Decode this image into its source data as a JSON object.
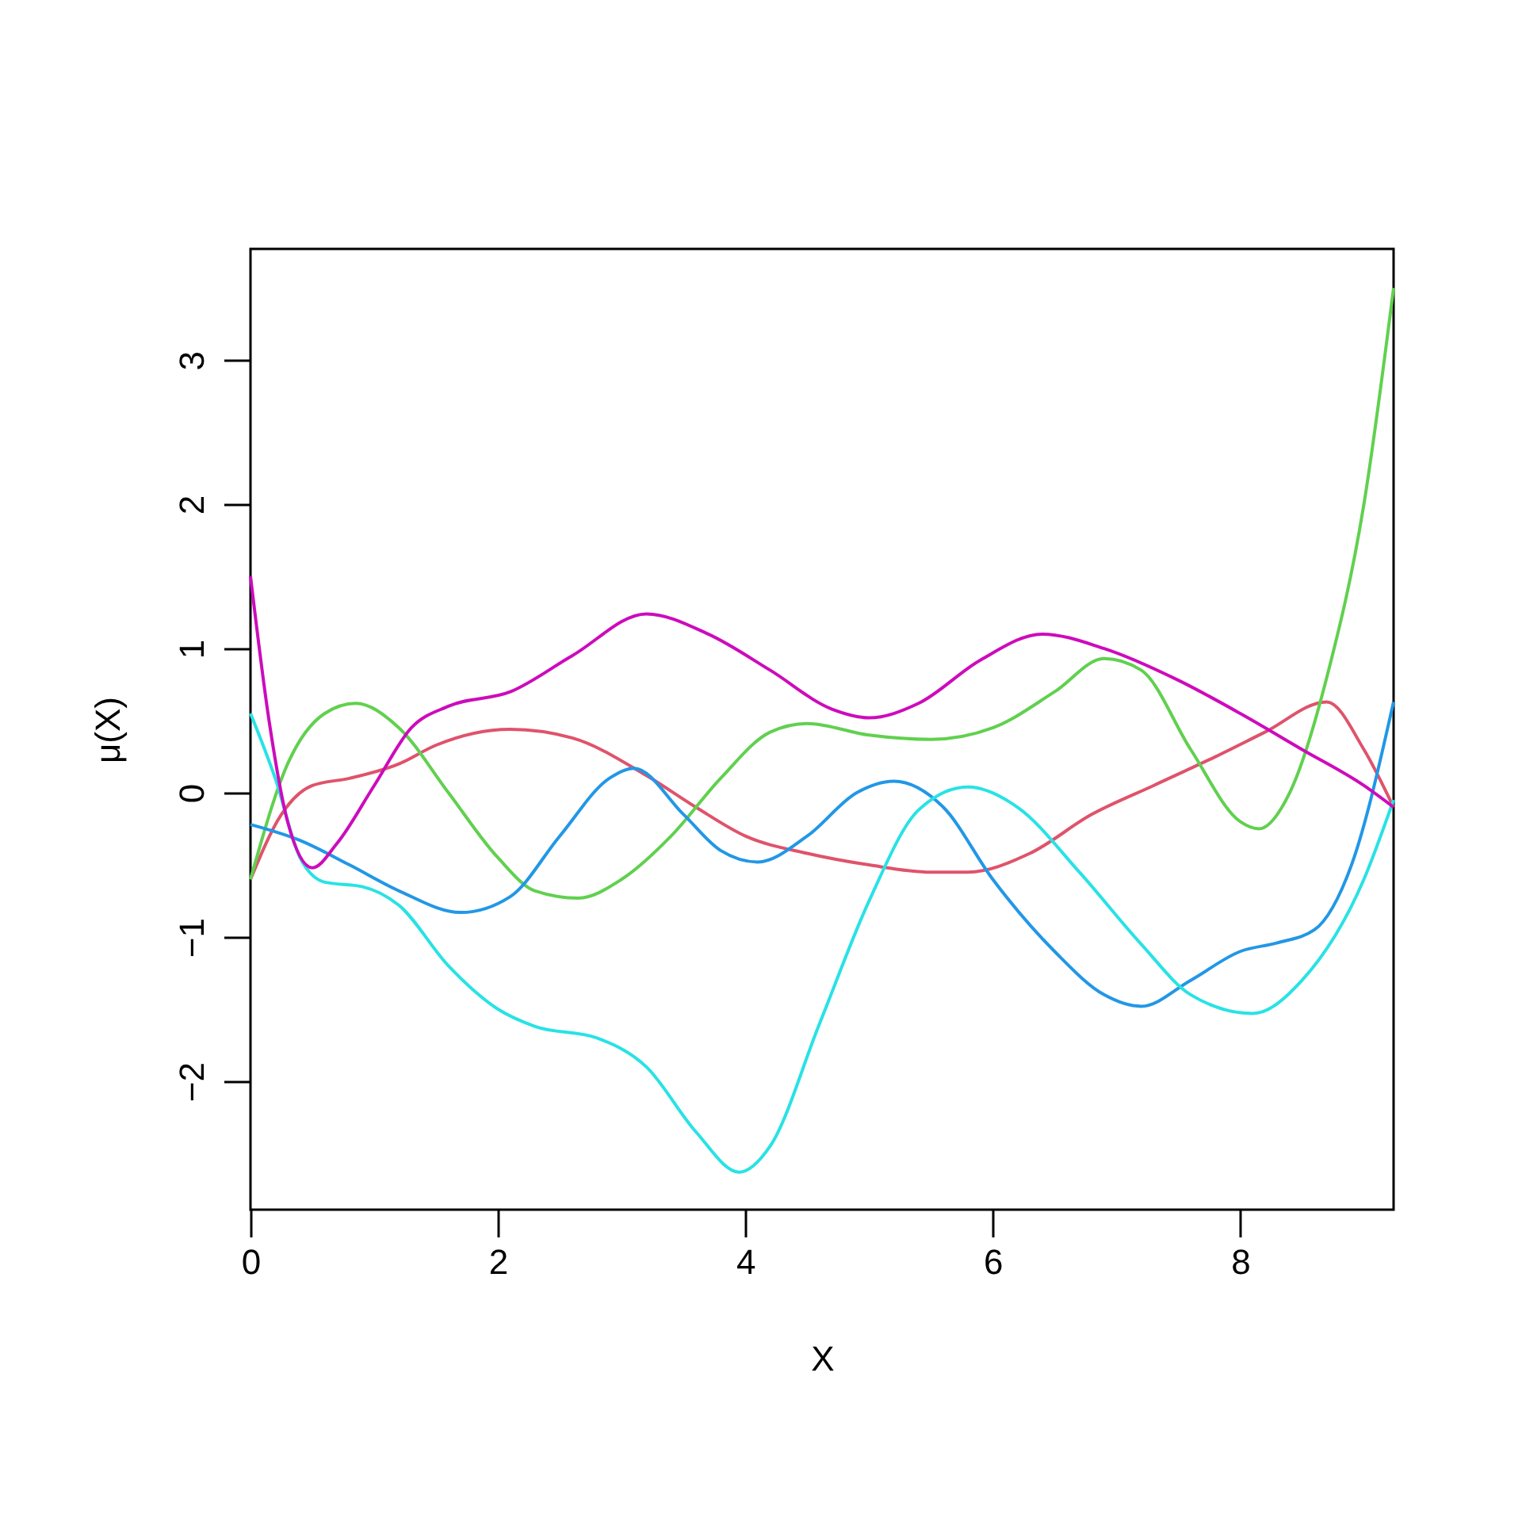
{
  "chart_data": {
    "type": "line",
    "xlabel": "X",
    "ylabel": "μ(X)",
    "xlim": [
      0,
      9.24
    ],
    "ylim": [
      -2.89,
      3.77
    ],
    "xticks": [
      0,
      2,
      4,
      6,
      8
    ],
    "yticks": [
      -2,
      -1,
      0,
      1,
      2,
      3
    ],
    "grid": false,
    "legend": false,
    "marker": "none",
    "line_style": "solid",
    "series": [
      {
        "color": "#df536b",
        "x": [
          0,
          0.25,
          0.5,
          0.8,
          1.2,
          1.5,
          2.1,
          2.6,
          3.2,
          3.6,
          4,
          4.5,
          5,
          5.5,
          5.8,
          6.3,
          6.8,
          7.3,
          7.8,
          8.2,
          8.7,
          9,
          9.24
        ],
        "values": [
          -0.6,
          -0.15,
          0.05,
          0.1,
          0.2,
          0.33,
          0.44,
          0.38,
          0.12,
          -0.1,
          -0.3,
          -0.42,
          -0.5,
          -0.55,
          -0.55,
          -0.42,
          -0.15,
          0.05,
          0.25,
          0.42,
          0.63,
          0.3,
          -0.1
        ]
      },
      {
        "color": "#61d04f",
        "x": [
          0,
          0.3,
          0.6,
          0.85,
          1.2,
          1.6,
          2,
          2.3,
          2.65,
          3,
          3.4,
          3.8,
          4.2,
          4.5,
          5,
          5.5,
          6,
          6.5,
          6.9,
          7.2,
          7.6,
          8,
          8.15,
          8.4,
          8.7,
          9,
          9.24
        ],
        "values": [
          -0.6,
          0.2,
          0.55,
          0.62,
          0.45,
          0,
          -0.45,
          -0.68,
          -0.73,
          -0.6,
          -0.3,
          0.1,
          0.42,
          0.48,
          0.4,
          0.37,
          0.45,
          0.7,
          0.93,
          0.85,
          0.3,
          -0.2,
          -0.25,
          0,
          0.8,
          2,
          3.5
        ]
      },
      {
        "color": "#2297e6",
        "x": [
          0,
          0.4,
          0.8,
          1.2,
          1.7,
          2.1,
          2.5,
          2.9,
          3.1,
          3.5,
          3.8,
          4.1,
          4.5,
          4.9,
          5.2,
          5.6,
          6,
          6.5,
          6.9,
          7.2,
          7.6,
          8,
          8.3,
          8.6,
          8.9,
          9.24
        ],
        "values": [
          -0.22,
          -0.33,
          -0.5,
          -0.68,
          -0.83,
          -0.72,
          -0.3,
          0.1,
          0.17,
          -0.15,
          -0.4,
          -0.48,
          -0.3,
          0,
          0.08,
          -0.1,
          -0.6,
          -1.1,
          -1.4,
          -1.48,
          -1.3,
          -1.1,
          -1.04,
          -0.95,
          -0.5,
          0.63
        ]
      },
      {
        "color": "#28e2e5",
        "x": [
          0,
          0.2,
          0.4,
          0.6,
          0.9,
          1.2,
          1.6,
          2,
          2.3,
          2.8,
          3.2,
          3.6,
          3.95,
          4.2,
          4.6,
          5,
          5.4,
          5.8,
          6.2,
          6.7,
          7.2,
          7.6,
          8.1,
          8.5,
          9,
          9.24
        ],
        "values": [
          0.55,
          0.1,
          -0.45,
          -0.62,
          -0.65,
          -0.78,
          -1.2,
          -1.5,
          -1.62,
          -1.7,
          -1.9,
          -2.35,
          -2.63,
          -2.45,
          -1.6,
          -0.75,
          -0.12,
          0.04,
          -0.1,
          -0.55,
          -1.05,
          -1.4,
          -1.53,
          -1.3,
          -0.6,
          -0.05
        ]
      },
      {
        "color": "#cd0bbc",
        "x": [
          0,
          0.15,
          0.3,
          0.5,
          0.7,
          1,
          1.3,
          1.6,
          2.1,
          2.6,
          3.2,
          3.7,
          4.2,
          4.7,
          5,
          5.4,
          5.9,
          6.4,
          6.9,
          7.5,
          8,
          8.5,
          9,
          9.24
        ],
        "values": [
          1.5,
          0.5,
          -0.2,
          -0.52,
          -0.35,
          0.05,
          0.45,
          0.6,
          0.7,
          0.95,
          1.24,
          1.1,
          0.85,
          0.58,
          0.52,
          0.62,
          0.92,
          1.1,
          1,
          0.78,
          0.55,
          0.3,
          0.05,
          -0.1
        ]
      }
    ]
  }
}
